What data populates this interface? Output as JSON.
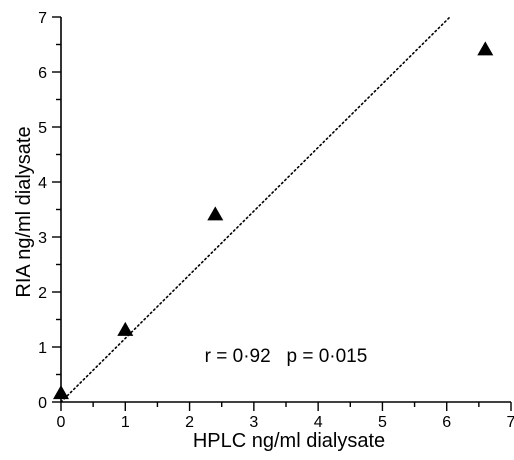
{
  "chart_data": {
    "type": "scatter",
    "xlabel": "HPLC ng/ml dialysate",
    "ylabel": "RIA ng/ml dialysate",
    "xlim": [
      0,
      7
    ],
    "ylim": [
      0,
      7
    ],
    "x_ticks": [
      "0",
      "1",
      "2",
      "3",
      "4",
      "5",
      "6",
      "7"
    ],
    "y_ticks": [
      "0",
      "1",
      "2",
      "3",
      "4",
      "5",
      "6",
      "7"
    ],
    "series": [
      {
        "marker": "triangle",
        "points": [
          {
            "x": 0.0,
            "y": 0.15
          },
          {
            "x": 1.0,
            "y": 1.3
          },
          {
            "x": 2.4,
            "y": 3.4
          },
          {
            "x": 6.6,
            "y": 6.4
          }
        ]
      }
    ],
    "line": {
      "style": "dotted",
      "from": [
        0,
        0
      ],
      "to": [
        6.05,
        7.0
      ]
    },
    "annotation": "r = 0·92   p = 0·015",
    "grid": false
  }
}
